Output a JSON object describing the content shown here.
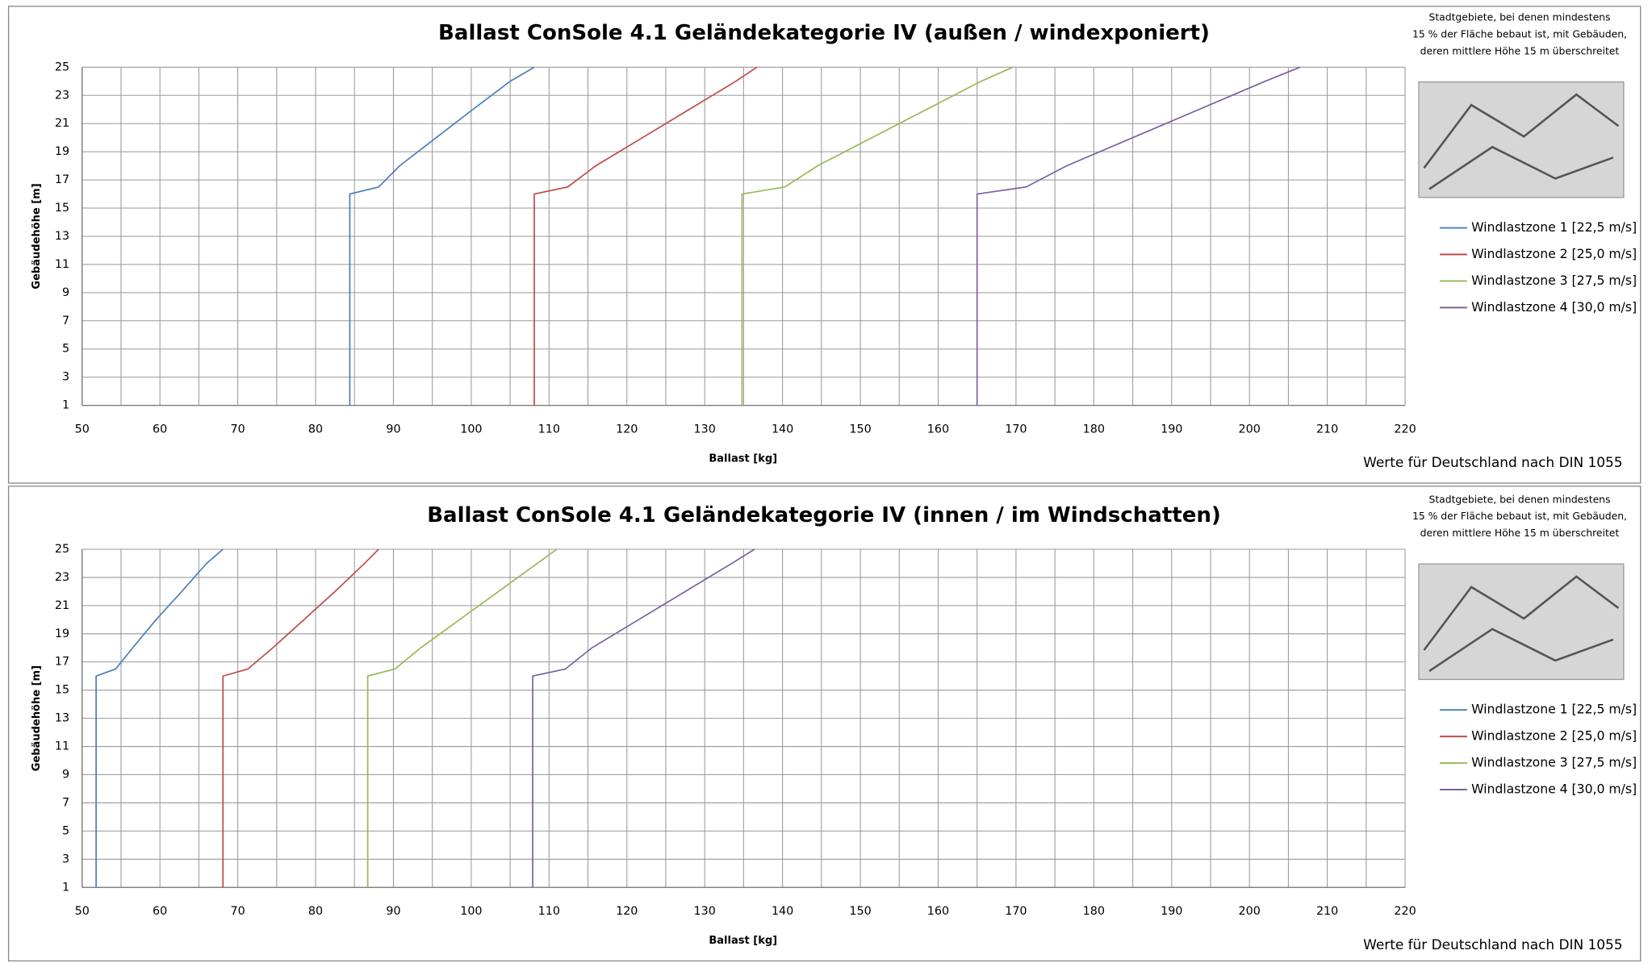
{
  "chart_data": [
    {
      "type": "line",
      "title": "Ballast ConSole 4.1 Geländekategorie IV (außen / windexponiert)",
      "note": [
        "Stadtgebiete, bei denen mindestens",
        "15 % der Fläche bebaut ist, mit Gebäuden,",
        "deren mittlere Höhe 15 m überschreitet"
      ],
      "footer": "Werte für Deutschland nach DIN 1055",
      "xlabel": "Ballast  [kg]",
      "ylabel": "Gebäudehöhe [m]",
      "xlim": [
        50,
        220
      ],
      "xticks": [
        50,
        60,
        70,
        80,
        90,
        100,
        110,
        120,
        130,
        140,
        150,
        160,
        170,
        180,
        190,
        200,
        210,
        220
      ],
      "x_minor_ticks": [
        55,
        65,
        75,
        85,
        95,
        105,
        115,
        125,
        135,
        145,
        155,
        165,
        175,
        185,
        195,
        205,
        215
      ],
      "ylim": [
        1,
        25
      ],
      "yticks": [
        1,
        3,
        5,
        7,
        9,
        11,
        13,
        15,
        17,
        19,
        21,
        23,
        25
      ],
      "grid": true,
      "legend": "right",
      "series": [
        {
          "name": "Windlastzone 1 [22,5 m/s]",
          "color": "#4a7ebb",
          "x": [
            84.4,
            84.4,
            88.1,
            90.8,
            95.5,
            100.2,
            105,
            108.1
          ],
          "values": [
            1,
            16,
            16.5,
            18,
            20,
            22,
            24,
            25
          ]
        },
        {
          "name": "Windlastzone 2 [25,0 m/s]",
          "color": "#be4b48",
          "x": [
            108.1,
            108.1,
            112.4,
            116,
            122,
            128,
            134,
            136.7
          ],
          "values": [
            1,
            16,
            16.5,
            18,
            20,
            22,
            24,
            25
          ]
        },
        {
          "name": "Windlastzone 3 [27,5 m/s]",
          "color": "#98b954",
          "x": [
            134.8,
            134.8,
            140.3,
            144.5,
            151.5,
            158.5,
            165.5,
            169.6
          ],
          "values": [
            1,
            16,
            16.5,
            18,
            20,
            22,
            24,
            25
          ]
        },
        {
          "name": "Windlastzone 4 [30,0 m/s]",
          "color": "#7d60a0",
          "x": [
            165,
            165,
            171.3,
            176.5,
            185,
            193.5,
            202,
            206.5
          ],
          "values": [
            1,
            16,
            16.5,
            18,
            20,
            22,
            24,
            25
          ]
        }
      ]
    },
    {
      "type": "line",
      "title": "Ballast ConSole 4.1 Geländekategorie IV (innen / im Windschatten)",
      "note": [
        "Stadtgebiete, bei denen mindestens",
        "15 % der Fläche bebaut ist, mit Gebäuden,",
        "deren mittlere Höhe 15 m überschreitet"
      ],
      "footer": "Werte für Deutschland nach DIN 1055",
      "xlabel": "Ballast  [kg]",
      "ylabel": "Gebäudehöhe [m]",
      "xlim": [
        50,
        220
      ],
      "xticks": [
        50,
        60,
        70,
        80,
        90,
        100,
        110,
        120,
        130,
        140,
        150,
        160,
        170,
        180,
        190,
        200,
        210,
        220
      ],
      "x_minor_ticks": [
        55,
        65,
        75,
        85,
        95,
        105,
        115,
        125,
        135,
        145,
        155,
        165,
        175,
        185,
        195,
        205,
        215
      ],
      "ylim": [
        1,
        25
      ],
      "yticks": [
        1,
        3,
        5,
        7,
        9,
        11,
        13,
        15,
        17,
        19,
        21,
        23,
        25
      ],
      "grid": true,
      "legend": "right",
      "series": [
        {
          "name": "Windlastzone 1 [22,5 m/s]",
          "color": "#4a7ebb",
          "x": [
            51.8,
            51.8,
            54.3,
            56.5,
            59.5,
            62.8,
            66,
            68.1
          ],
          "values": [
            1,
            16,
            16.5,
            18,
            20,
            22,
            24,
            25
          ]
        },
        {
          "name": "Windlastzone 2 [25,0 m/s]",
          "color": "#be4b48",
          "x": [
            68.1,
            68.1,
            71.3,
            74.5,
            78.5,
            82.5,
            86.3,
            88.1
          ],
          "values": [
            1,
            16,
            16.5,
            18,
            20,
            22,
            24,
            25
          ]
        },
        {
          "name": "Windlastzone 3 [27,5 m/s]",
          "color": "#98b954",
          "x": [
            86.7,
            86.7,
            90.2,
            93.5,
            98.5,
            103.5,
            108.5,
            111
          ],
          "values": [
            1,
            16,
            16.5,
            18,
            20,
            22,
            24,
            25
          ]
        },
        {
          "name": "Windlastzone 4 [30,0 m/s]",
          "color": "#7d60a0",
          "x": [
            107.9,
            107.9,
            112.1,
            115.5,
            121.5,
            127.5,
            133.5,
            136.4
          ],
          "values": [
            1,
            16,
            16.5,
            18,
            20,
            22,
            24,
            25
          ]
        }
      ]
    }
  ]
}
